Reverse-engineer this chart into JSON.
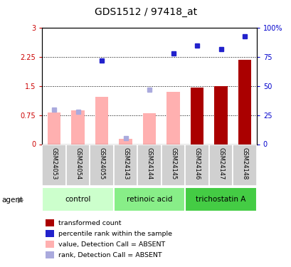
{
  "title": "GDS1512 / 97418_at",
  "samples": [
    "GSM24053",
    "GSM24054",
    "GSM24055",
    "GSM24143",
    "GSM24144",
    "GSM24145",
    "GSM24146",
    "GSM24147",
    "GSM24148"
  ],
  "groups": [
    {
      "label": "control",
      "indices": [
        0,
        1,
        2
      ]
    },
    {
      "label": "retinoic acid",
      "indices": [
        3,
        4,
        5
      ]
    },
    {
      "label": "trichostatin A",
      "indices": [
        6,
        7,
        8
      ]
    }
  ],
  "bar_values": [
    0.82,
    0.87,
    1.22,
    0.13,
    0.8,
    1.35,
    1.47,
    1.5,
    2.18
  ],
  "bar_absent": [
    true,
    true,
    true,
    true,
    true,
    true,
    false,
    false,
    false
  ],
  "dot_values": [
    30,
    28,
    72,
    5,
    47,
    78,
    85,
    82,
    93
  ],
  "dot_absent": [
    true,
    true,
    false,
    true,
    true,
    false,
    false,
    false,
    false
  ],
  "ylim_left": [
    0,
    3
  ],
  "ylim_right": [
    0,
    100
  ],
  "yticks_left": [
    0,
    0.75,
    1.5,
    2.25,
    3
  ],
  "ytick_labels_left": [
    "0",
    "0.75",
    "1.5",
    "2.25",
    "3"
  ],
  "yticks_right": [
    0,
    25,
    50,
    75,
    100
  ],
  "ytick_labels_right": [
    "0",
    "25",
    "50",
    "75",
    "100%"
  ],
  "bar_color_present": "#aa0000",
  "bar_color_absent": "#ffb0b0",
  "dot_color_present": "#2222cc",
  "dot_color_absent": "#aaaadd",
  "group_colors": [
    "#ccffcc",
    "#88ee88",
    "#44cc44"
  ],
  "legend_items": [
    {
      "label": "transformed count",
      "color": "#aa0000",
      "marker": "s",
      "absent": false
    },
    {
      "label": "percentile rank within the sample",
      "color": "#2222cc",
      "marker": "s",
      "absent": false
    },
    {
      "label": "value, Detection Call = ABSENT",
      "color": "#ffb0b0",
      "marker": "s",
      "absent": true
    },
    {
      "label": "rank, Detection Call = ABSENT",
      "color": "#aaaadd",
      "marker": "s",
      "absent": true
    }
  ]
}
